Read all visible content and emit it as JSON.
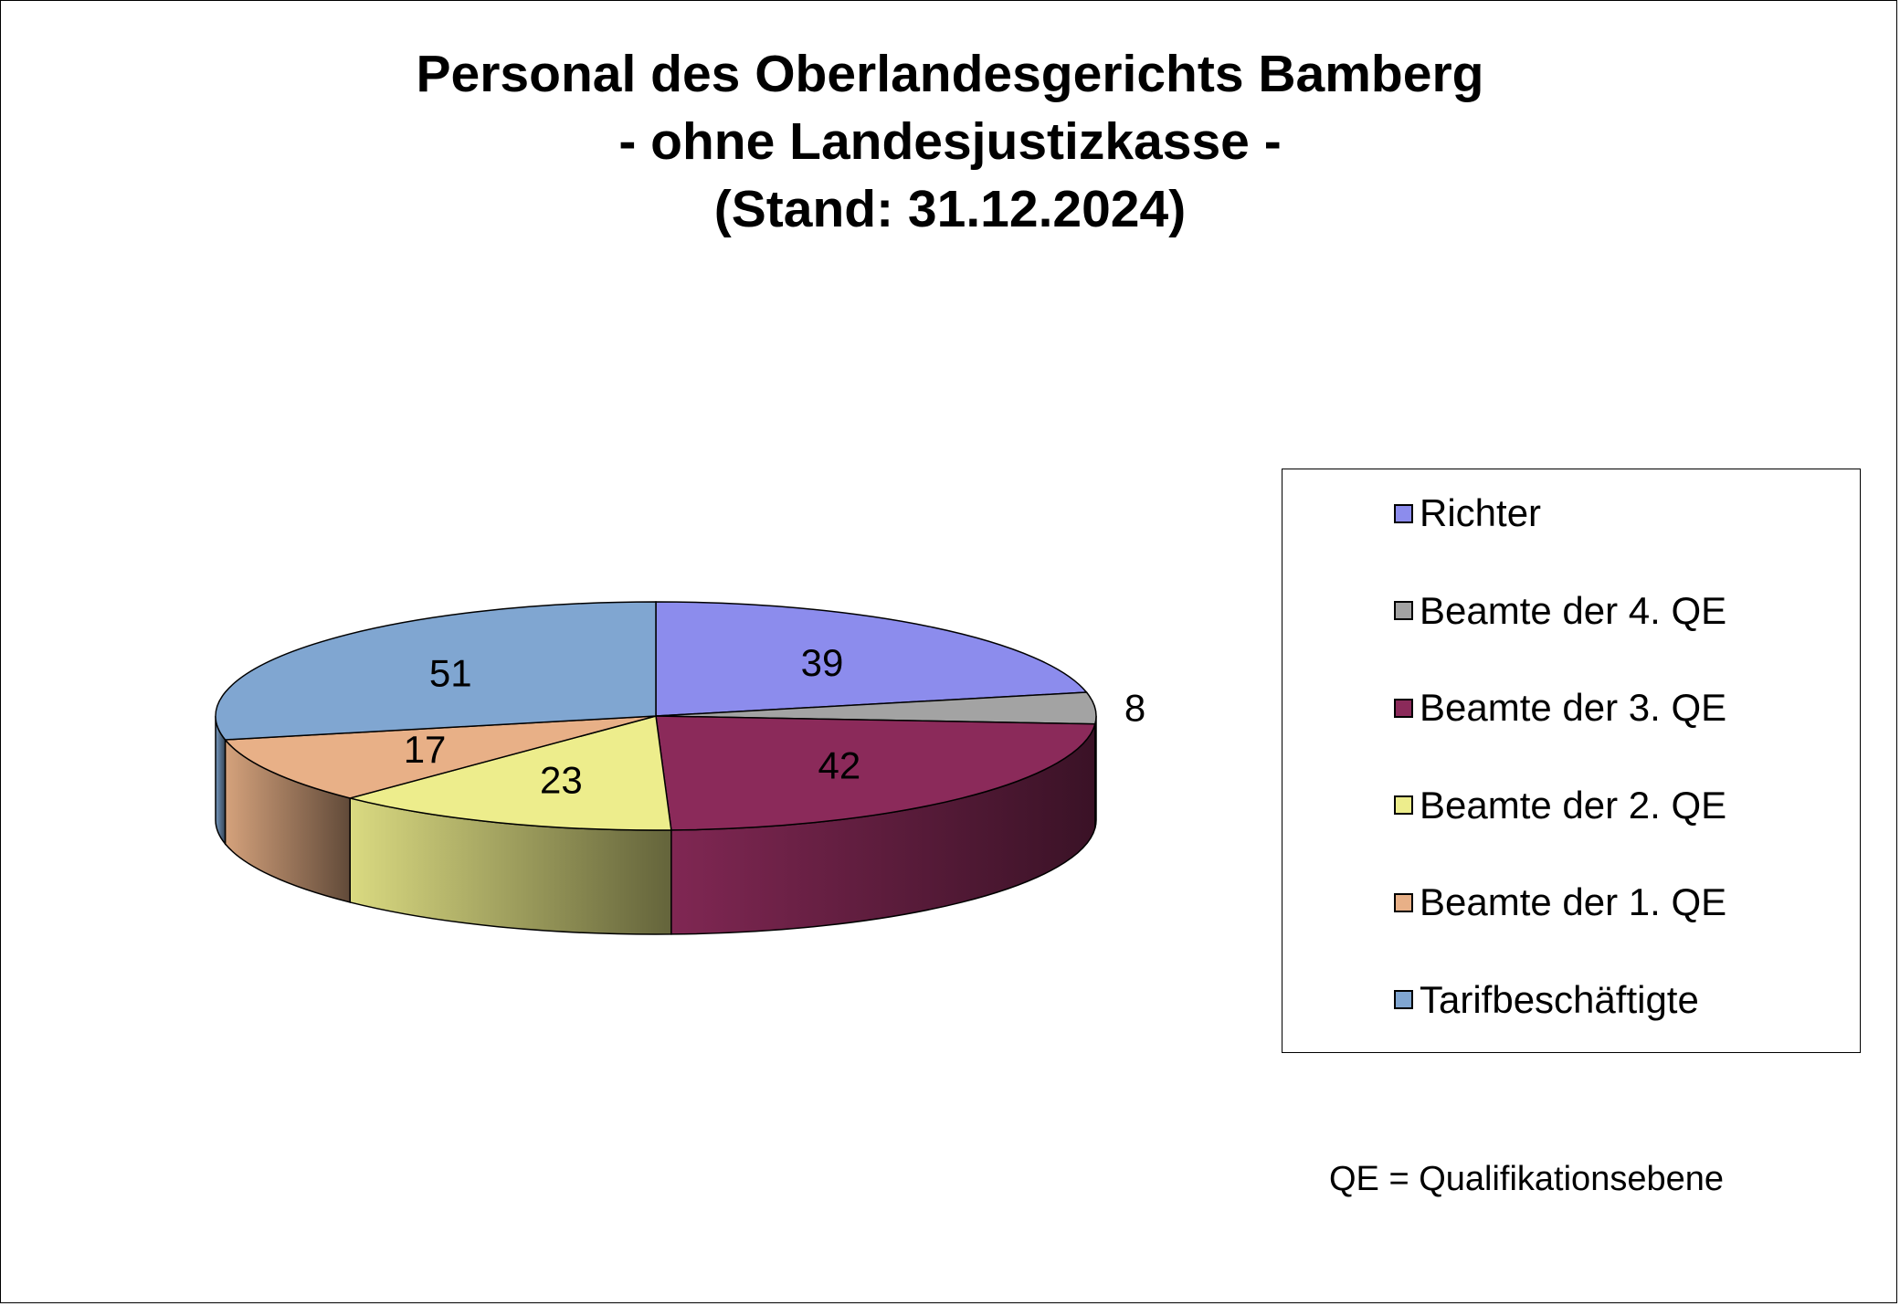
{
  "title_lines": [
    "Personal des Oberlandesgerichts Bamberg",
    "- ohne Landesjustizkasse -",
    "(Stand: 31.12.2024)"
  ],
  "footnote": "QE = Qualifikationsebene",
  "chart_data": {
    "type": "pie",
    "variant": "3d",
    "title": "Personal des Oberlandesgerichts Bamberg - ohne Landesjustizkasse - (Stand: 31.12.2024)",
    "categories": [
      "Richter",
      "Beamte der 4. QE",
      "Beamte der 3. QE",
      "Beamte der 2. QE",
      "Beamte der 1. QE",
      "Tarifbeschäftigte"
    ],
    "values": [
      39,
      8,
      42,
      23,
      17,
      51
    ],
    "colors": [
      "#8c8ced",
      "#a3a3a3",
      "#8b2a5a",
      "#eded8c",
      "#e8b087",
      "#80a6d1"
    ],
    "legend_position": "right",
    "data_labels": true
  }
}
